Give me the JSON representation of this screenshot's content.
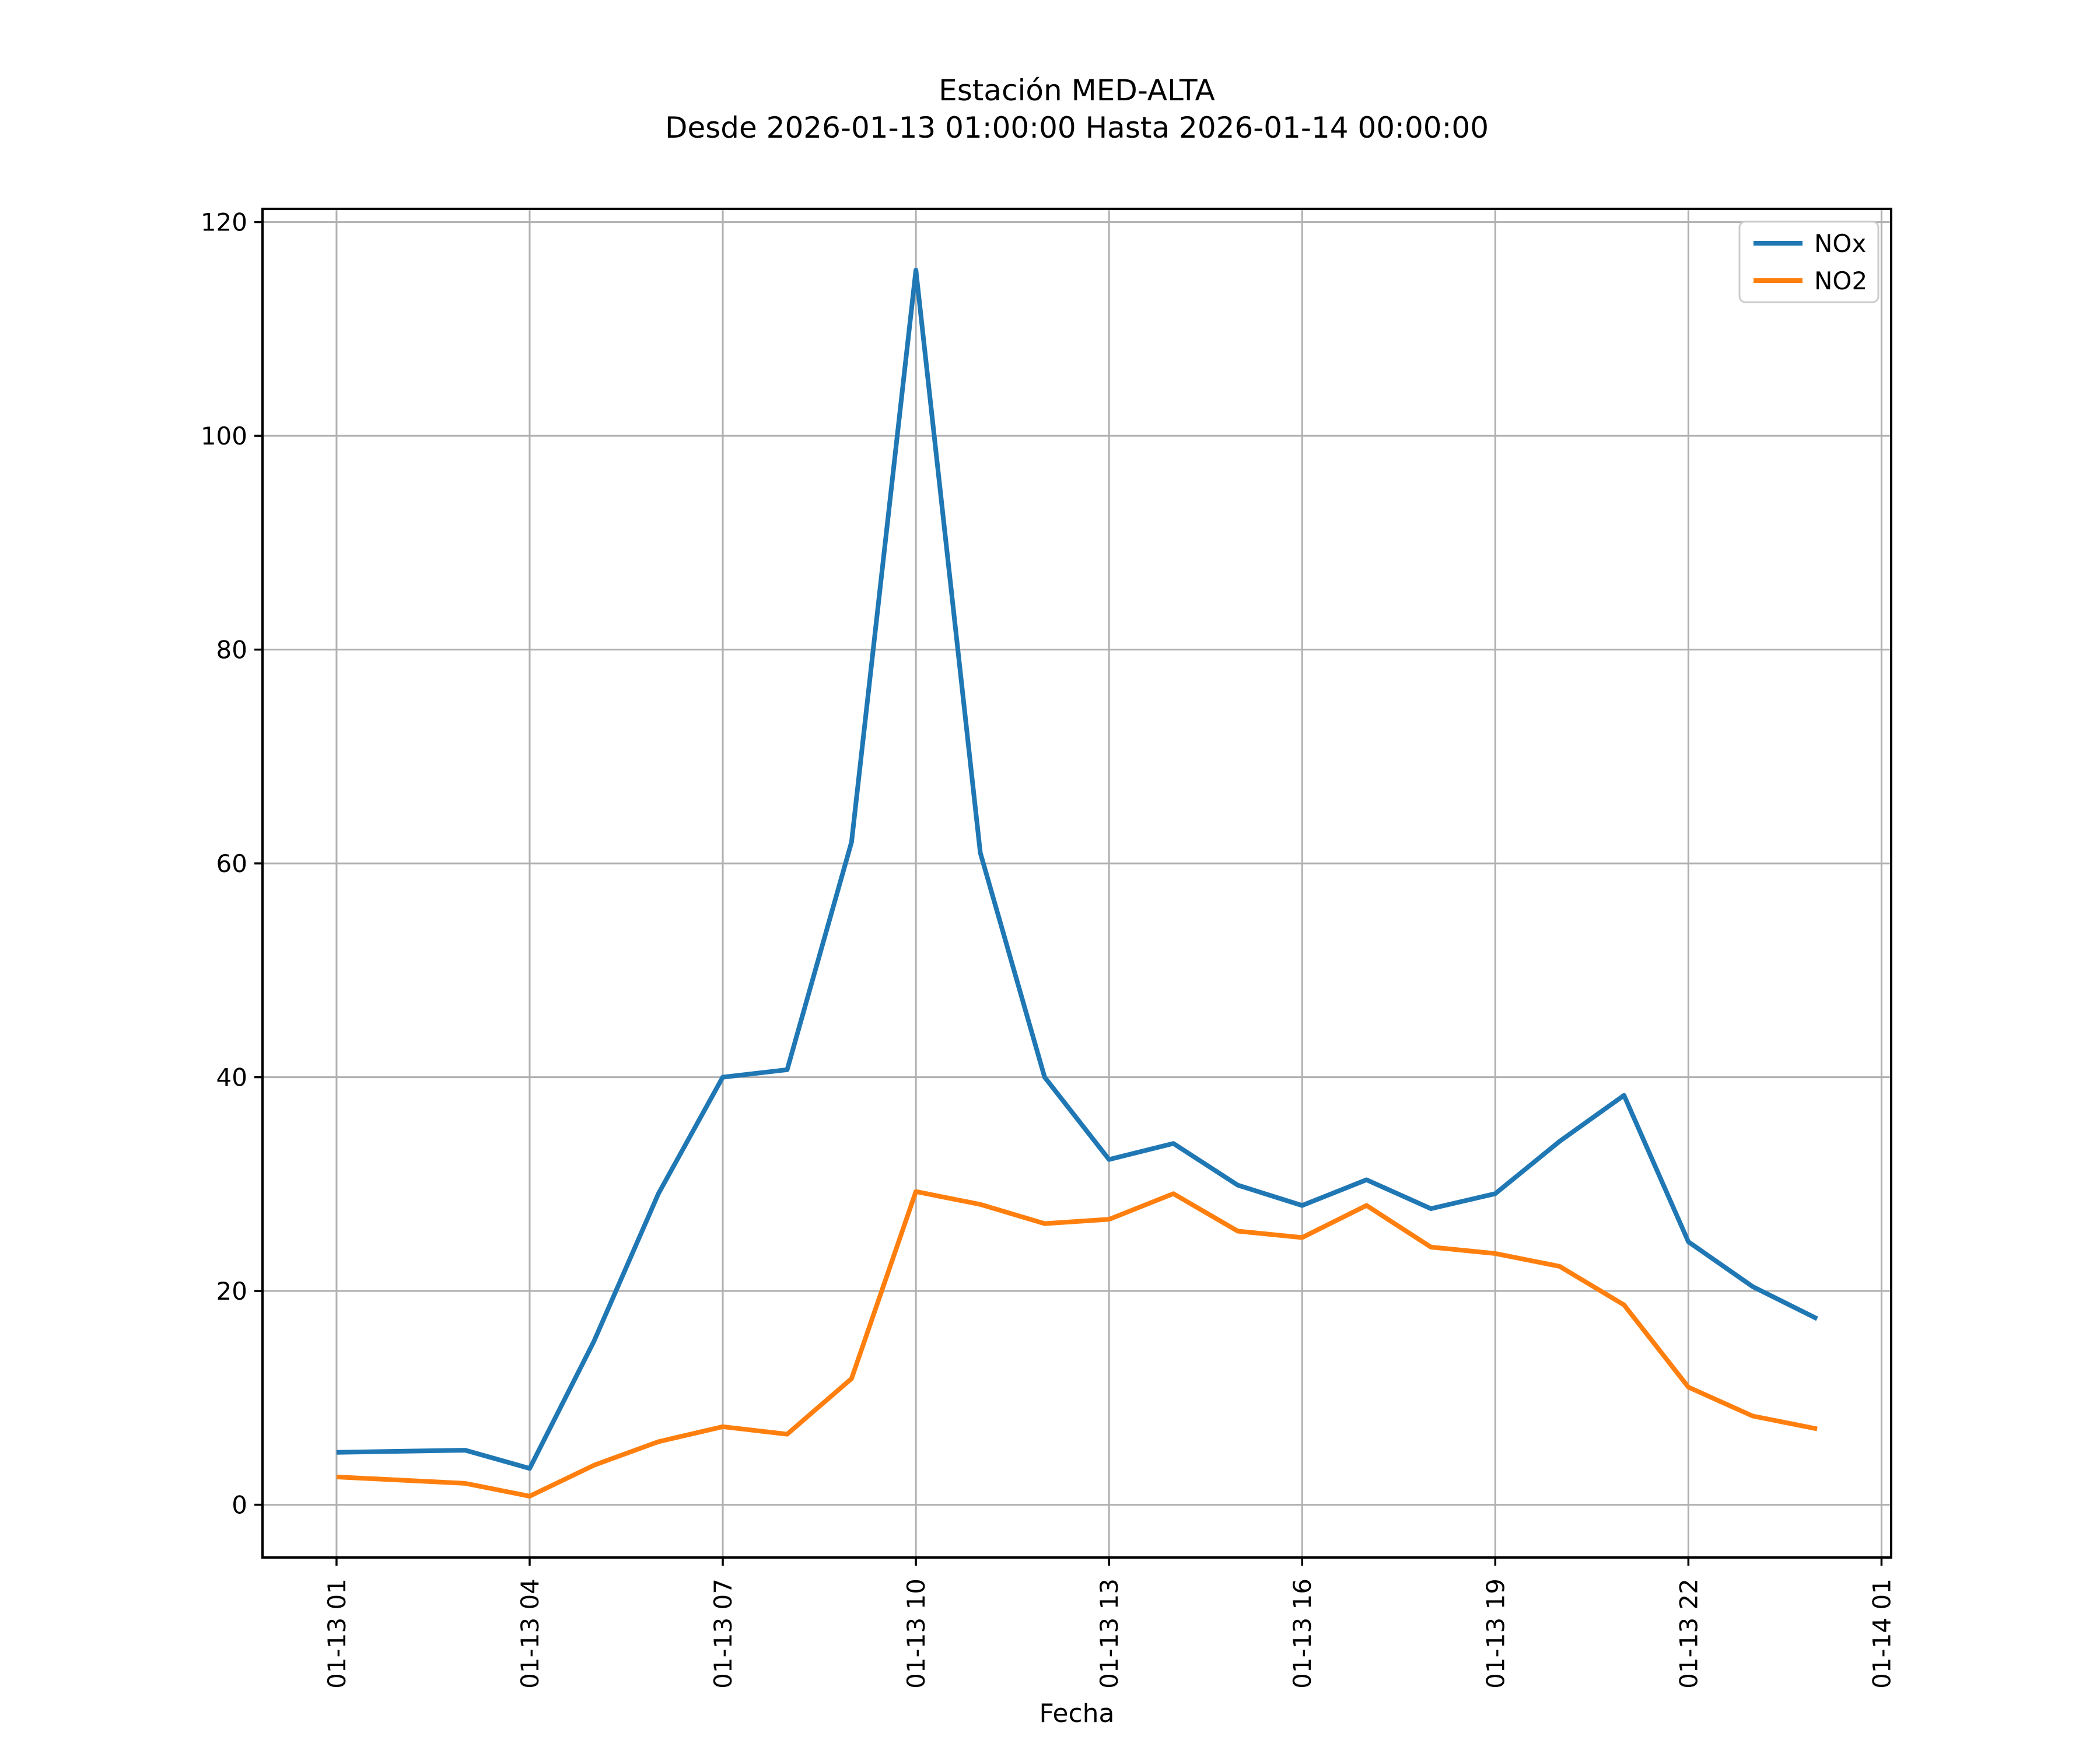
{
  "title_line1": "Estación MED-ALTA",
  "title_line2": "Desde 2026-01-13 01:00:00 Hasta 2026-01-14 00:00:00",
  "xlabel": "Fecha",
  "legend": {
    "entries": [
      {
        "label": "NOx",
        "color": "#1f77b4"
      },
      {
        "label": "NO2",
        "color": "#ff7f0e"
      }
    ]
  },
  "colors": {
    "grid": "#b0b0b0",
    "spine": "#000000",
    "legend_border": "#cccccc",
    "background": "#ffffff"
  },
  "chart_data": {
    "type": "line",
    "title": "Estación MED-ALTA",
    "subtitle": "Desde 2026-01-13 01:00:00 Hasta 2026-01-14 00:00:00",
    "xlabel": "Fecha",
    "ylabel": "",
    "grid": true,
    "legend_position": "upper right",
    "x": [
      "2026-01-13 01:00",
      "2026-01-13 02:00",
      "2026-01-13 03:00",
      "2026-01-13 04:00",
      "2026-01-13 05:00",
      "2026-01-13 06:00",
      "2026-01-13 07:00",
      "2026-01-13 08:00",
      "2026-01-13 09:00",
      "2026-01-13 10:00",
      "2026-01-13 11:00",
      "2026-01-13 12:00",
      "2026-01-13 13:00",
      "2026-01-13 14:00",
      "2026-01-13 15:00",
      "2026-01-13 16:00",
      "2026-01-13 17:00",
      "2026-01-13 18:00",
      "2026-01-13 19:00",
      "2026-01-13 20:00",
      "2026-01-13 21:00",
      "2026-01-13 22:00",
      "2026-01-13 23:00",
      "2026-01-14 00:00"
    ],
    "series": [
      {
        "name": "NOx",
        "color": "#1f77b4",
        "values": [
          4.9,
          5.0,
          5.1,
          3.4,
          15.3,
          29.1,
          40.0,
          40.7,
          62.0,
          115.5,
          61.0,
          40.0,
          32.3,
          33.8,
          29.9,
          28.0,
          30.4,
          27.7,
          29.1,
          34.0,
          38.3,
          24.6,
          20.4,
          17.4
        ]
      },
      {
        "name": "NO2",
        "color": "#ff7f0e",
        "values": [
          2.6,
          2.3,
          2.0,
          0.8,
          3.7,
          5.9,
          7.3,
          6.6,
          11.8,
          29.3,
          28.1,
          26.3,
          26.7,
          29.1,
          25.6,
          25.0,
          28.0,
          24.1,
          23.5,
          22.3,
          18.7,
          11.0,
          8.3,
          7.1
        ]
      }
    ],
    "xtick_indices": [
      0,
      3,
      6,
      9,
      12,
      15,
      18,
      21,
      24
    ],
    "xtick_labels": [
      "01-13 01",
      "01-13 04",
      "01-13 07",
      "01-13 10",
      "01-13 13",
      "01-13 16",
      "01-13 19",
      "01-13 22",
      "01-14 01"
    ],
    "ytick_values": [
      0,
      20,
      40,
      60,
      80,
      100,
      120
    ],
    "ytick_labels": [
      "0",
      "20",
      "40",
      "60",
      "80",
      "100",
      "120"
    ],
    "ylim": [
      -4.9,
      121.2
    ],
    "x_margin_fraction": 0.05,
    "y_margin_fraction": 0.05
  }
}
